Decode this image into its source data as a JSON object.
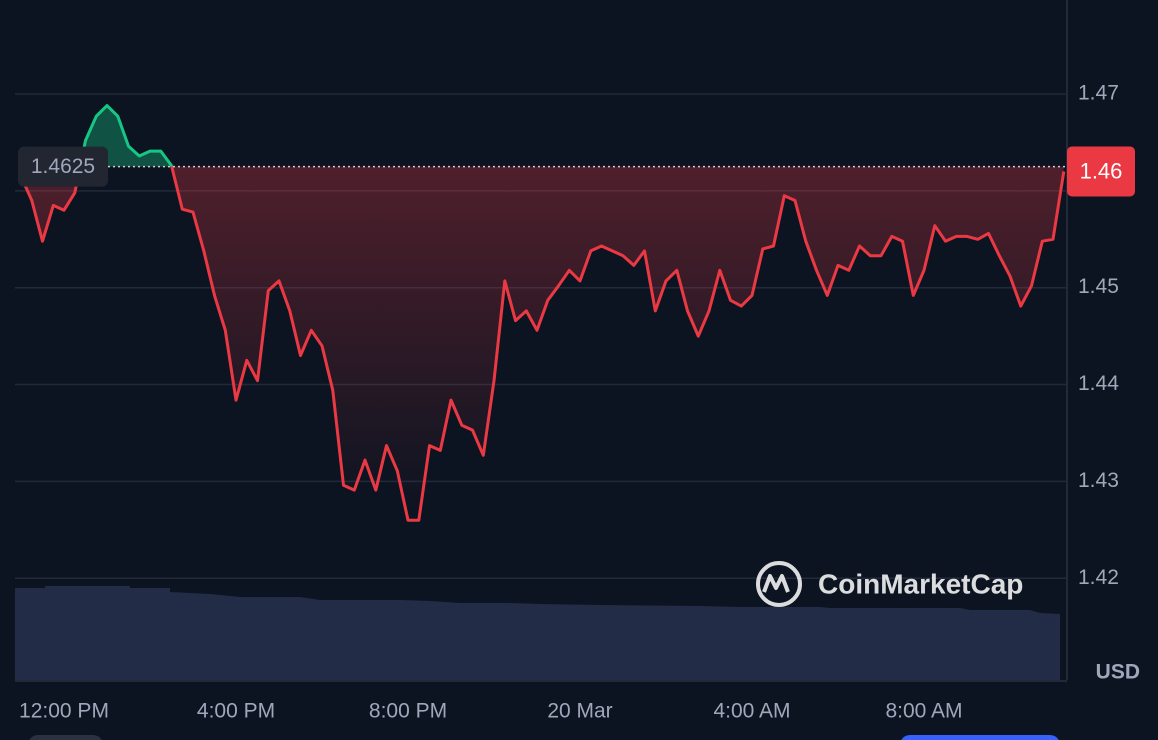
{
  "chart_data": {
    "type": "line",
    "categories": [
      null,
      null,
      null,
      null,
      "12:00 PM",
      null,
      null,
      null,
      null,
      null,
      null,
      null,
      null,
      null,
      null,
      null,
      null,
      null,
      null,
      null,
      "4:00 PM",
      null,
      null,
      null,
      null,
      null,
      null,
      null,
      null,
      null,
      null,
      null,
      null,
      null,
      null,
      null,
      "8:00 PM",
      null,
      null,
      null,
      null,
      null,
      null,
      null,
      null,
      null,
      null,
      null,
      null,
      null,
      null,
      null,
      "20 Mar",
      null,
      null,
      null,
      null,
      null,
      null,
      null,
      null,
      null,
      null,
      null,
      null,
      null,
      null,
      null,
      "4:00 AM",
      null,
      null,
      null,
      null,
      null,
      null,
      null,
      null,
      null,
      null,
      null,
      null,
      null,
      null,
      null,
      "8:00 AM",
      null,
      null,
      null,
      null,
      null,
      null,
      null,
      null,
      null,
      null,
      null,
      null,
      null
    ],
    "values": [
      1.4615,
      1.459,
      1.4548,
      1.4585,
      1.458,
      1.4598,
      1.4652,
      1.4677,
      1.4688,
      1.4677,
      1.4646,
      1.4636,
      1.4641,
      1.4641,
      1.4626,
      1.4581,
      1.4578,
      1.4538,
      1.4492,
      1.4456,
      1.4384,
      1.4425,
      1.4404,
      1.4497,
      1.4507,
      1.4476,
      1.443,
      1.4456,
      1.444,
      1.4394,
      1.4296,
      1.4291,
      1.4322,
      1.4291,
      1.4337,
      1.4311,
      1.426,
      1.426,
      1.4337,
      1.4332,
      1.4384,
      1.4358,
      1.4353,
      1.4327,
      1.4404,
      1.4507,
      1.4466,
      1.4476,
      1.4456,
      1.4487,
      1.4502,
      1.4518,
      1.4507,
      1.4538,
      1.4543,
      1.4538,
      1.4533,
      1.4523,
      1.4538,
      1.4476,
      1.4507,
      1.4518,
      1.4476,
      1.445,
      1.4476,
      1.4518,
      1.4487,
      1.4481,
      1.4492,
      1.454,
      1.4543,
      1.4595,
      1.459,
      1.4548,
      1.4518,
      1.4492,
      1.4523,
      1.4518,
      1.4543,
      1.4533,
      1.4533,
      1.4553,
      1.4548,
      1.4492,
      1.4518,
      1.4564,
      1.4548,
      1.4553,
      1.4553,
      1.455,
      1.4556,
      1.4533,
      1.4512,
      1.4481,
      1.4502,
      1.4548,
      1.455,
      1.462
    ],
    "color_up": "#16c784",
    "color_down": "#ea3943",
    "reference": {
      "value": 1.4625,
      "label": "1.4625"
    },
    "price_tag": {
      "value": 1.462,
      "label": "1.46"
    },
    "ylim": [
      1.4095,
      1.4797
    ],
    "yticks": [
      1.42,
      1.43,
      1.44,
      1.45,
      1.46,
      1.47
    ],
    "grid": true,
    "currency": "USD",
    "watermark": "CoinMarketCap"
  }
}
